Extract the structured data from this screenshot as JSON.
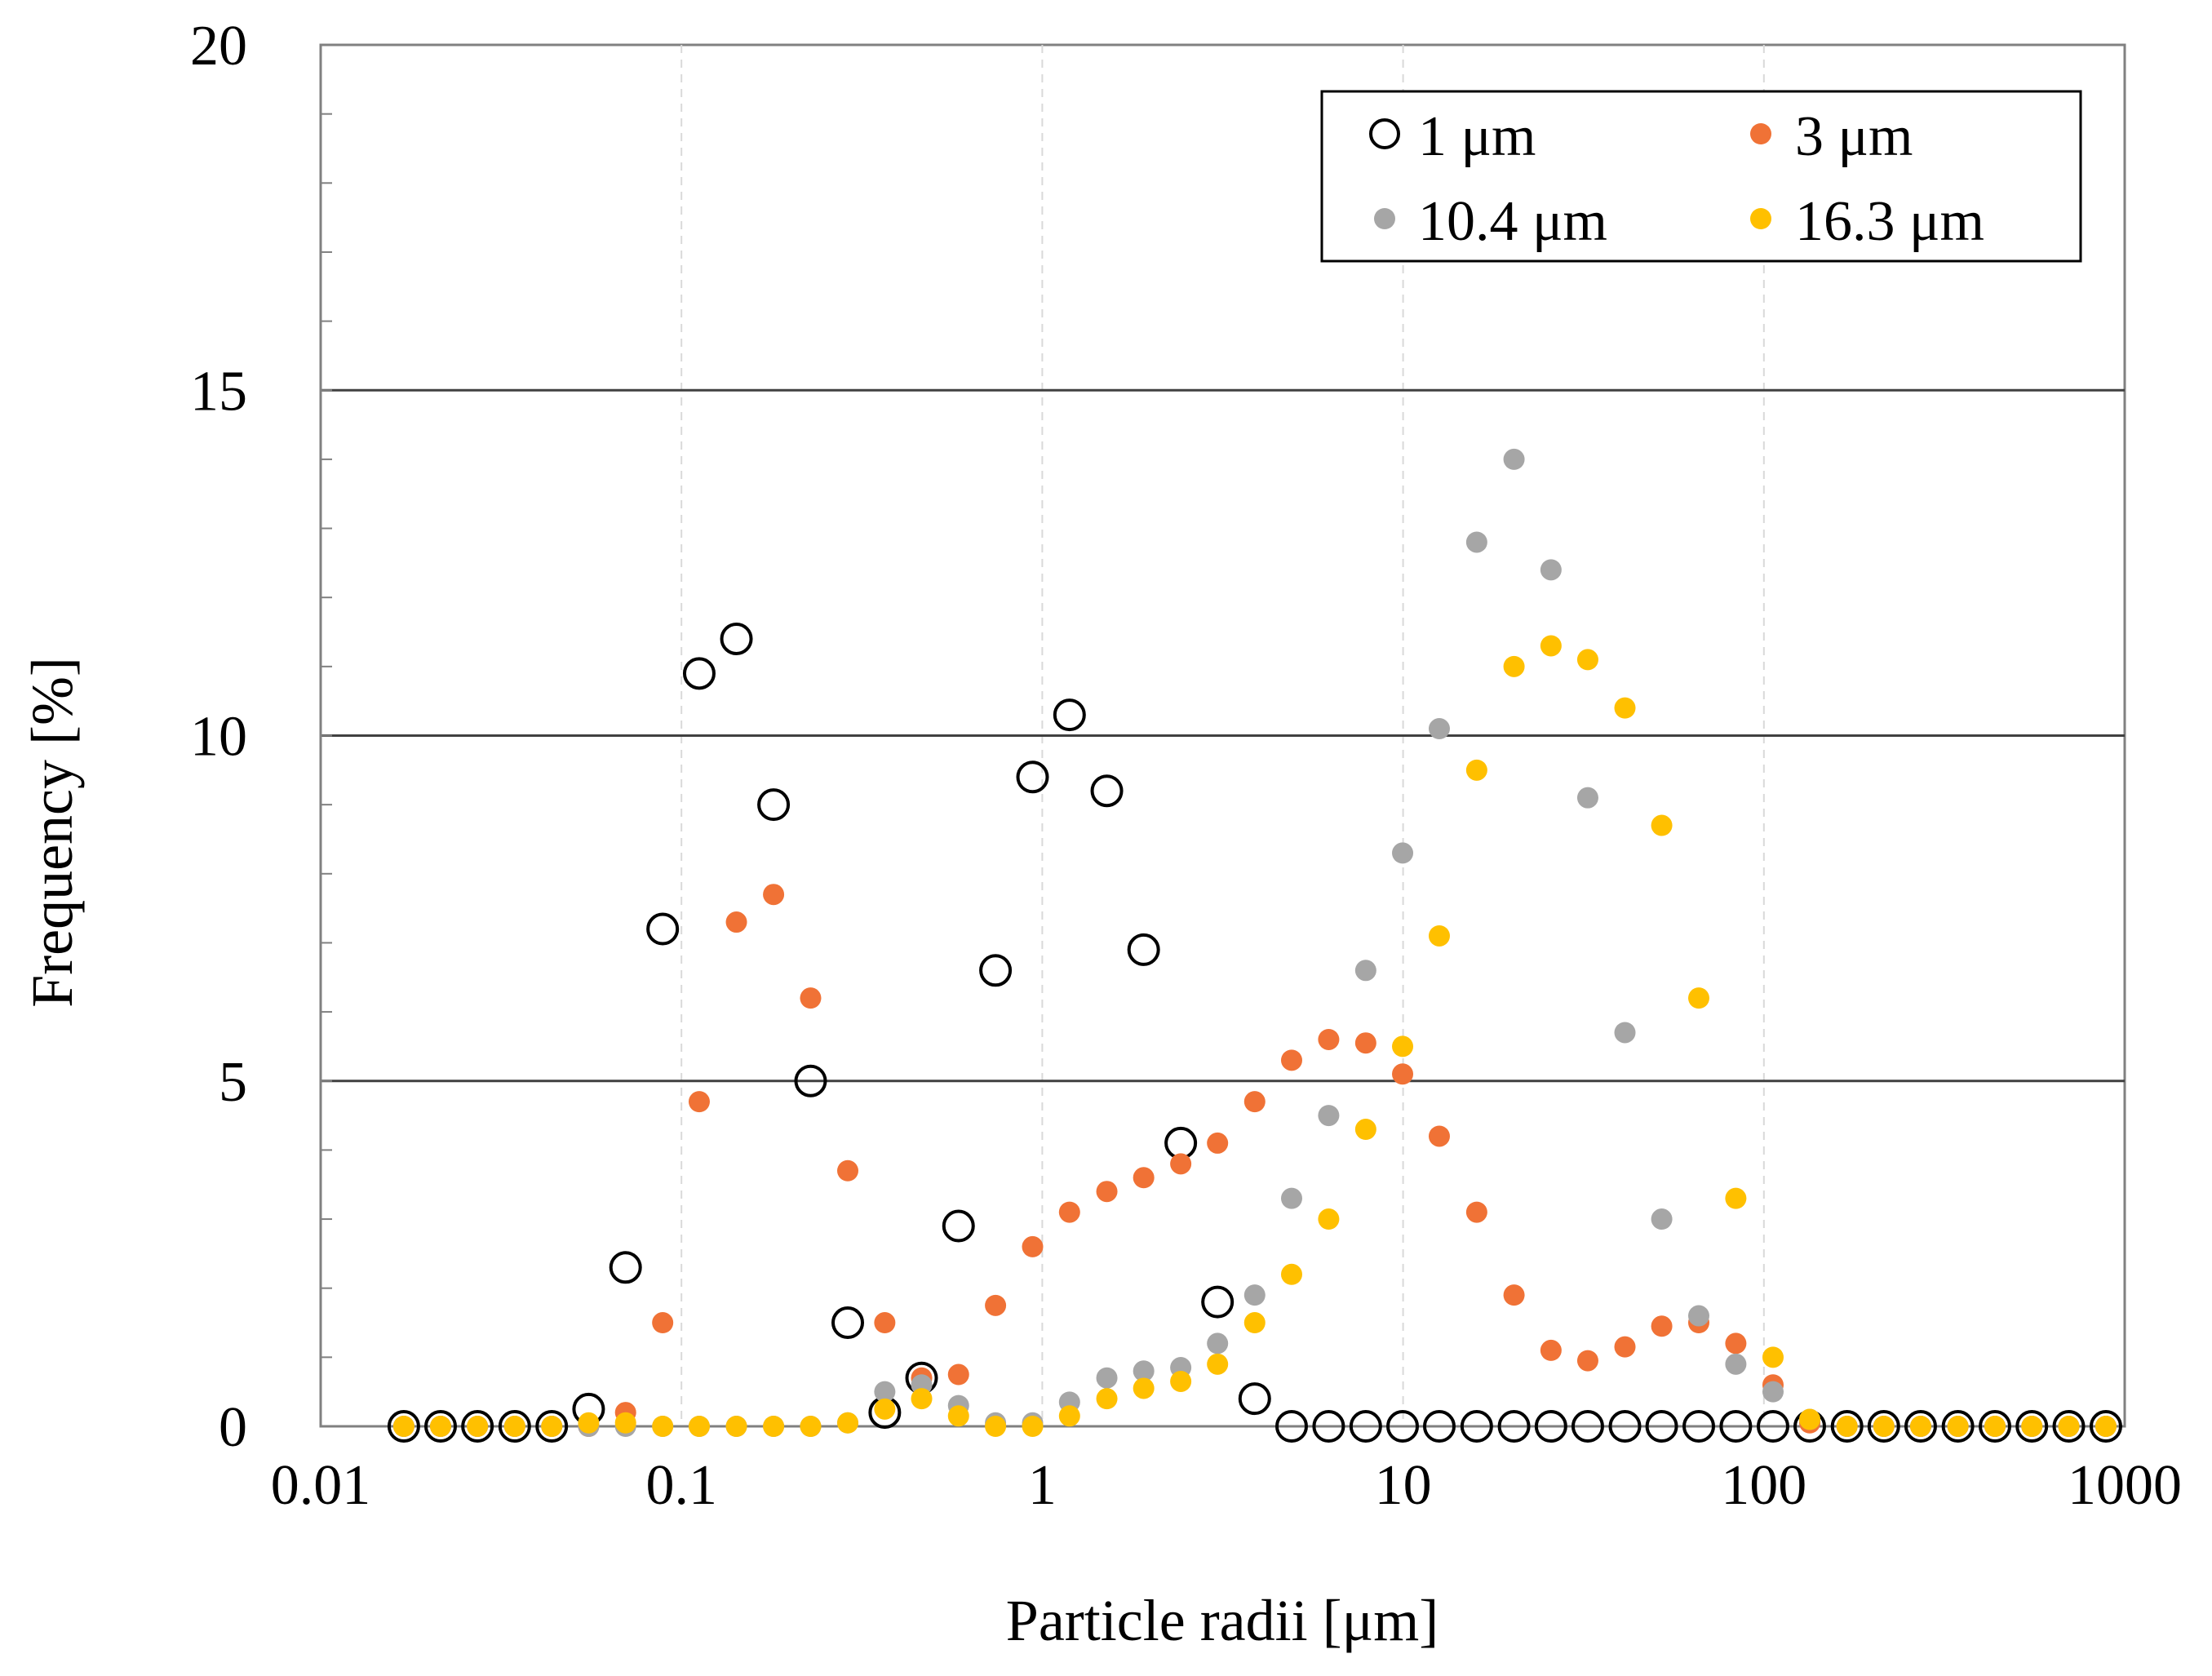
{
  "chart_data": {
    "type": "scatter",
    "title": "",
    "xlabel": "Particle radii [μm]",
    "ylabel": "Frequency [%]",
    "xscale": "log",
    "xlim": [
      0.01,
      1000
    ],
    "ylim": [
      0,
      20
    ],
    "x_ticks": [
      0.01,
      0.1,
      1,
      10,
      100,
      1000
    ],
    "x_tick_labels": [
      "0.01",
      "0.1",
      "1",
      "10",
      "100",
      "1000"
    ],
    "y_ticks": [
      0,
      5,
      10,
      15,
      20
    ],
    "y_tick_labels": [
      "0",
      "5",
      "10",
      "15",
      "20"
    ],
    "major_gridlines_y": [
      5,
      10,
      15
    ],
    "legend_position": "top-right",
    "x": [
      0.017,
      0.0215,
      0.0272,
      0.0345,
      0.0437,
      0.0553,
      0.07,
      0.0887,
      0.112,
      0.142,
      0.18,
      0.228,
      0.289,
      0.366,
      0.463,
      0.586,
      0.742,
      0.94,
      1.19,
      1.51,
      1.91,
      2.42,
      3.06,
      3.88,
      4.91,
      6.22,
      7.88,
      9.97,
      12.6,
      16.0,
      20.3,
      25.7,
      32.5,
      41.2,
      52.1,
      66.0,
      83.6,
      106,
      134,
      170,
      215,
      272,
      345,
      437,
      553,
      700,
      887
    ],
    "series": [
      {
        "name": "1 μm",
        "color": "#000000",
        "marker": "open-circle",
        "values": [
          0,
          0,
          0,
          0,
          0,
          0.25,
          2.3,
          7.2,
          10.9,
          11.4,
          9.0,
          5.0,
          1.5,
          0.2,
          0.7,
          2.9,
          6.6,
          9.4,
          10.3,
          9.2,
          6.9,
          4.1,
          1.8,
          0.4,
          0,
          0,
          0,
          0,
          0,
          0,
          0,
          0,
          0,
          0,
          0,
          0,
          0,
          0,
          0,
          0,
          0,
          0,
          0,
          0,
          0,
          0,
          0
        ]
      },
      {
        "name": "3 μm",
        "color": "#f07236",
        "marker": "filled-circle",
        "values": [
          0,
          0,
          0,
          0,
          0,
          0,
          0.2,
          1.5,
          4.7,
          7.3,
          7.7,
          6.2,
          3.7,
          1.5,
          0.7,
          0.75,
          1.75,
          2.6,
          3.1,
          3.4,
          3.6,
          3.8,
          4.1,
          4.7,
          5.3,
          5.6,
          5.55,
          5.1,
          4.2,
          3.1,
          1.9,
          1.1,
          0.95,
          1.15,
          1.45,
          1.5,
          1.2,
          0.6,
          0.05,
          0,
          0,
          0,
          0,
          0,
          0,
          0,
          0
        ]
      },
      {
        "name": "10.4 μm",
        "color": "#a6a6a6",
        "marker": "filled-circle",
        "values": [
          0,
          0,
          0,
          0,
          0,
          0,
          0,
          0,
          0,
          0,
          0,
          0,
          0.05,
          0.5,
          0.6,
          0.3,
          0.05,
          0.05,
          0.35,
          0.7,
          0.8,
          0.85,
          1.2,
          1.9,
          3.3,
          4.5,
          6.6,
          8.3,
          10.1,
          12.8,
          14.0,
          12.4,
          9.1,
          5.7,
          3.0,
          1.6,
          0.9,
          0.5,
          0.1,
          0,
          0,
          0,
          0,
          0,
          0,
          0,
          0
        ]
      },
      {
        "name": "16.3 μm",
        "color": "#ffc000",
        "marker": "filled-circle",
        "values": [
          0,
          0,
          0,
          0,
          0,
          0.05,
          0.05,
          0,
          0,
          0,
          0,
          0,
          0.05,
          0.25,
          0.4,
          0.15,
          0,
          0,
          0.15,
          0.4,
          0.55,
          0.65,
          0.9,
          1.5,
          2.2,
          3.0,
          4.3,
          5.5,
          7.1,
          9.5,
          11.0,
          11.3,
          11.1,
          10.4,
          8.7,
          6.2,
          3.3,
          1.0,
          0.1,
          0,
          0,
          0,
          0,
          0,
          0,
          0,
          0
        ]
      }
    ]
  }
}
